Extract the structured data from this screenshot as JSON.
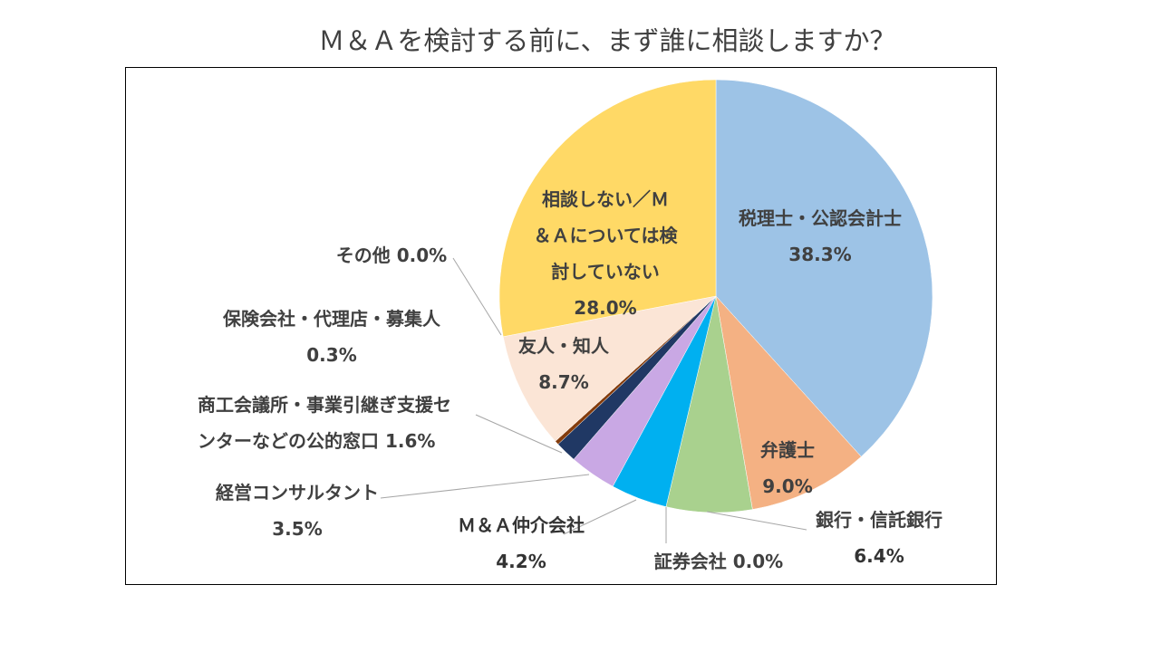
{
  "chart_data": {
    "type": "pie",
    "title": "Ｍ＆Ａを検討する前に、まず誰に相談しますか？",
    "slices": [
      {
        "name": "税理士・公認会計士",
        "value": 38.3,
        "label": "38.3%",
        "color": "#9DC3E6"
      },
      {
        "name": "弁護士",
        "value": 9.0,
        "label": "9.0%",
        "color": "#F4B183"
      },
      {
        "name": "銀行・信託銀行",
        "value": 6.4,
        "label": "6.4%",
        "color": "#A9D18E"
      },
      {
        "name": "証券会社",
        "value": 0.0,
        "label": "0.0%",
        "color": "#5B9BD5"
      },
      {
        "name": "Ｍ＆Ａ仲介会社",
        "value": 4.2,
        "label": "4.2%",
        "color": "#00B0F0"
      },
      {
        "name": "経営コンサルタント",
        "value": 3.5,
        "label": "3.5%",
        "color": "#C9A8E4"
      },
      {
        "name": "商工会議所・事業引継ぎ支援センターなどの公的窓口",
        "value": 1.6,
        "label": "1.6%",
        "color": "#203864"
      },
      {
        "name": "保険会社・代理店・募集人",
        "value": 0.3,
        "label": "0.3%",
        "color": "#843C0C"
      },
      {
        "name": "友人・知人",
        "value": 8.7,
        "label": "8.7%",
        "color": "#FBE5D6"
      },
      {
        "name": "その他",
        "value": 0.0,
        "label": "0.0%",
        "color": "#7F7F7F"
      },
      {
        "name": "相談しない／Ｍ＆Ａについては検討していない",
        "value": 28.0,
        "label": "28.0%",
        "color": "#FFD966"
      }
    ],
    "label_lines": {
      "zeirishi": [
        "税理士・公認会計士",
        "38.3%"
      ],
      "bengoshi": [
        "弁護士",
        "9.0%"
      ],
      "ginko": [
        "銀行・信託銀行",
        "6.4%"
      ],
      "shoken": [
        "証券会社 0.0%"
      ],
      "chukai": [
        "Ｍ＆Ａ仲介会社",
        "4.2%"
      ],
      "consul": [
        "経営コンサルタント",
        "3.5%"
      ],
      "shoko": [
        "商工会議所・事業引継ぎ支援セ",
        "ンターなどの公的窓口  1.6%"
      ],
      "hoken": [
        "保険会社・代理店・募集人",
        "0.3%"
      ],
      "yujin": [
        "友人・知人",
        "8.7%"
      ],
      "sonota": [
        "その他 0.0%"
      ],
      "nashi": [
        "相談しない／Ｍ",
        "＆Ａについては検",
        "討していない",
        "28.0%"
      ]
    }
  }
}
